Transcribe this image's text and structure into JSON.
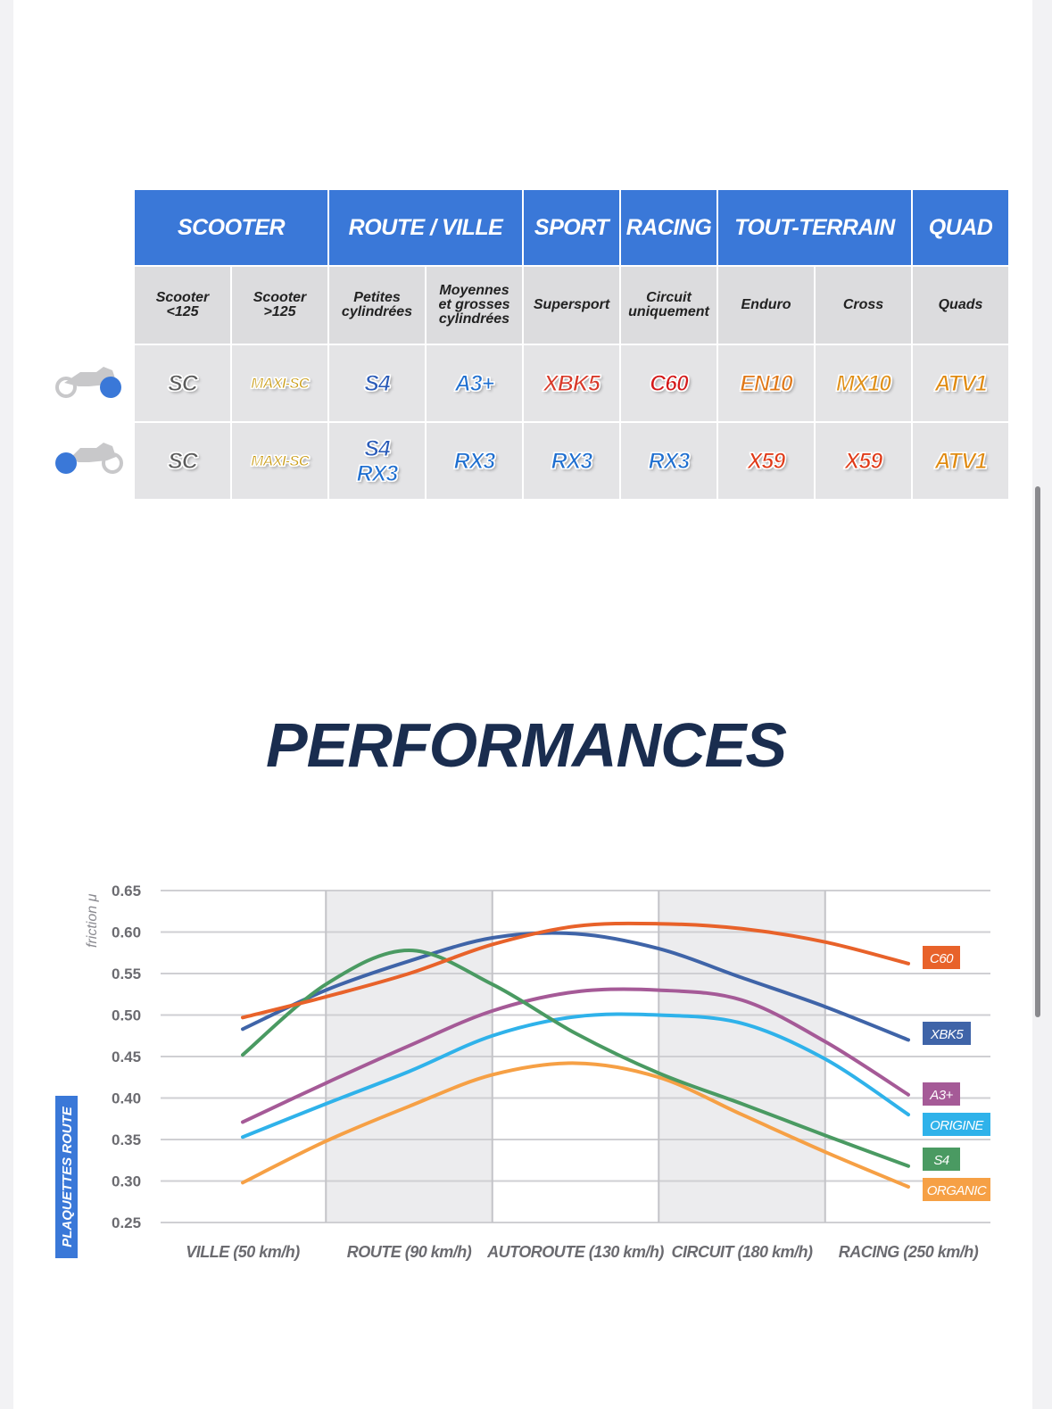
{
  "table": {
    "categories": [
      {
        "label": "SCOOTER",
        "span": 2
      },
      {
        "label": "ROUTE / VILLE",
        "span": 2
      },
      {
        "label": "SPORT",
        "span": 1
      },
      {
        "label": "RACING",
        "span": 1
      },
      {
        "label": "TOUT-TERRAIN",
        "span": 2
      },
      {
        "label": "QUAD",
        "span": 1
      }
    ],
    "subcategories": [
      "Scooter\n<125",
      "Scooter\n>125",
      "Petites\ncylindrées",
      "Moyennes\net grosses\ncylindrées",
      "Supersport",
      "Circuit\nuniquement",
      "Enduro",
      "Cross",
      "Quads"
    ],
    "front_row": [
      "SC",
      "MAXI-SC",
      "S4",
      "A3+",
      "XBK5",
      "C60",
      "EN10",
      "MX10",
      "ATV1"
    ],
    "rear_row": [
      [
        "SC"
      ],
      [
        "MAXI-SC"
      ],
      [
        "S4",
        "RX3"
      ],
      [
        "RX3"
      ],
      [
        "RX3"
      ],
      [
        "RX3"
      ],
      [
        "X59"
      ],
      [
        "X59"
      ],
      [
        "ATV1"
      ]
    ],
    "front_icon": "motorcycle-front-wheel-icon",
    "rear_icon": "motorcycle-rear-wheel-icon"
  },
  "section_title": "PERFORMANCES",
  "colors": {
    "header_blue": "#3a78d8",
    "C60": "#e8622a",
    "XBK5": "#3f64a8",
    "A3+": "#a55a97",
    "ORIGINE": "#2fb2ea",
    "S4": "#4a9a62",
    "ORGANIC": "#f6a045"
  },
  "chart_data": {
    "type": "line",
    "ylabel": "friction μ",
    "side_label": "PLAQUETTES ROUTE",
    "ylim": [
      0.25,
      0.65
    ],
    "yticks": [
      "0.65",
      "0.60",
      "0.55",
      "0.50",
      "0.45",
      "0.40",
      "0.35",
      "0.30",
      "0.25"
    ],
    "categories": [
      "VILLE (50 km/h)",
      "ROUTE (90 km/h)",
      "AUTOROUTE (130 km/h)",
      "CIRCUIT (180 km/h)",
      "RACING (250 km/h)"
    ],
    "x": [
      0,
      0.5,
      1,
      1.5,
      2,
      2.5,
      3,
      3.5,
      4
    ],
    "series": [
      {
        "name": "C60",
        "values": [
          0.497,
          0.522,
          0.55,
          0.585,
          0.607,
          0.61,
          0.604,
          0.588,
          0.562
        ]
      },
      {
        "name": "XBK5",
        "values": [
          0.483,
          0.53,
          0.565,
          0.593,
          0.598,
          0.58,
          0.545,
          0.51,
          0.47
        ]
      },
      {
        "name": "A3+",
        "values": [
          0.371,
          0.418,
          0.463,
          0.505,
          0.528,
          0.53,
          0.518,
          0.468,
          0.404
        ]
      },
      {
        "name": "ORIGINE",
        "values": [
          0.353,
          0.393,
          0.432,
          0.475,
          0.498,
          0.5,
          0.49,
          0.447,
          0.38
        ]
      },
      {
        "name": "S4",
        "values": [
          0.452,
          0.537,
          0.578,
          0.537,
          0.478,
          0.43,
          0.393,
          0.355,
          0.318
        ]
      },
      {
        "name": "ORGANIC",
        "values": [
          0.298,
          0.348,
          0.39,
          0.428,
          0.442,
          0.425,
          0.38,
          0.335,
          0.293
        ]
      }
    ],
    "shaded_bands": [
      "ROUTE (90 km/h)",
      "CIRCUIT (180 km/h)"
    ],
    "legend": "right, at line ends"
  }
}
